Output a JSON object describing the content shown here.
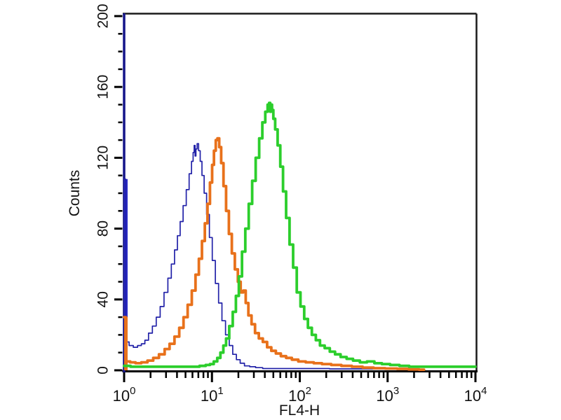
{
  "figure": {
    "background": "#ffffff",
    "plot_background": "#ffffff",
    "border_color": "#1a1a1a",
    "x_axis_color": "#000000",
    "y_axis_color": "#15158a",
    "tick_color": "#000000",
    "text_color": "#111111"
  },
  "chart_data": {
    "type": "line",
    "subtype": "flow-cytometry-overlay-histogram",
    "title": "",
    "xlabel": "FL4-H",
    "ylabel": "Counts",
    "x_scale": "log10",
    "x_range": [
      1,
      10000
    ],
    "y_range": [
      0,
      200
    ],
    "y_major_tick_step": 40,
    "y_minor_tick_step": 10,
    "y_tick_labels": [
      "0",
      "40",
      "80",
      "120",
      "160",
      "200"
    ],
    "x_tick_labels": [
      {
        "base": "10",
        "exp": "0"
      },
      {
        "base": "10",
        "exp": "1"
      },
      {
        "base": "10",
        "exp": "2"
      },
      {
        "base": "10",
        "exp": "3"
      },
      {
        "base": "10",
        "exp": "4"
      }
    ],
    "grid": false,
    "legend": "none",
    "series": [
      {
        "name": "blue",
        "color": "#2222a8",
        "stroke_width": 1.7,
        "peak_x": 6.9,
        "peak_counts": 128,
        "axis_spike": {
          "x": 1,
          "height": 108,
          "color": "#2828c4",
          "width": 5
        },
        "points": [
          [
            1,
            108
          ],
          [
            1.08,
            16
          ],
          [
            1.2,
            14
          ],
          [
            1.35,
            13
          ],
          [
            1.5,
            14
          ],
          [
            1.65,
            15
          ],
          [
            1.8,
            17
          ],
          [
            2.0,
            21
          ],
          [
            2.2,
            25
          ],
          [
            2.45,
            30
          ],
          [
            2.7,
            36
          ],
          [
            3.0,
            44
          ],
          [
            3.3,
            52
          ],
          [
            3.6,
            60
          ],
          [
            3.9,
            68
          ],
          [
            4.2,
            76
          ],
          [
            4.5,
            84
          ],
          [
            4.9,
            93
          ],
          [
            5.3,
            102
          ],
          [
            5.7,
            111
          ],
          [
            6.0,
            118
          ],
          [
            6.2,
            123
          ],
          [
            6.35,
            127
          ],
          [
            6.5,
            121
          ],
          [
            6.65,
            125
          ],
          [
            6.9,
            128
          ],
          [
            7.2,
            124
          ],
          [
            7.5,
            118
          ],
          [
            7.9,
            110
          ],
          [
            8.4,
            100
          ],
          [
            9.0,
            88
          ],
          [
            9.7,
            75
          ],
          [
            10.5,
            62
          ],
          [
            11.4,
            49
          ],
          [
            12.4,
            38
          ],
          [
            13.6,
            28
          ],
          [
            15.0,
            20
          ],
          [
            16.5,
            14
          ],
          [
            18,
            9
          ],
          [
            20,
            6
          ],
          [
            22,
            4
          ],
          [
            25,
            2.5
          ],
          [
            29,
            2
          ],
          [
            34,
            1.5
          ],
          [
            42,
            1
          ],
          [
            55,
            1
          ],
          [
            75,
            1
          ],
          [
            110,
            1
          ],
          [
            170,
            1
          ],
          [
            280,
            0.8
          ],
          [
            450,
            0.8
          ],
          [
            700,
            0.8
          ],
          [
            1100,
            0.8
          ],
          [
            1600,
            0.5
          ],
          [
            2100,
            0.3
          ]
        ]
      },
      {
        "name": "orange",
        "color": "#e8711b",
        "stroke_width": 3.8,
        "peak_x": 11.5,
        "peak_counts": 131,
        "axis_spike": {
          "x": 1,
          "height": 30,
          "color": "#e8711b",
          "width": 5
        },
        "points": [
          [
            1,
            30
          ],
          [
            1.1,
            5
          ],
          [
            1.25,
            4.5
          ],
          [
            1.45,
            4
          ],
          [
            1.7,
            4.5
          ],
          [
            2.0,
            5.5
          ],
          [
            2.3,
            7
          ],
          [
            2.7,
            9
          ],
          [
            3.1,
            12
          ],
          [
            3.5,
            15
          ],
          [
            4.0,
            19
          ],
          [
            4.5,
            24
          ],
          [
            5.0,
            30
          ],
          [
            5.6,
            37
          ],
          [
            6.2,
            45
          ],
          [
            6.8,
            54
          ],
          [
            7.4,
            63
          ],
          [
            8.0,
            73
          ],
          [
            8.6,
            83
          ],
          [
            9.2,
            94
          ],
          [
            9.8,
            106
          ],
          [
            10.3,
            116
          ],
          [
            10.8,
            124
          ],
          [
            11.3,
            130
          ],
          [
            11.8,
            131
          ],
          [
            12.4,
            126
          ],
          [
            13.1,
            117
          ],
          [
            14.0,
            104
          ],
          [
            15.0,
            90
          ],
          [
            16.2,
            77
          ],
          [
            17.5,
            66
          ],
          [
            19.0,
            57
          ],
          [
            20.5,
            50
          ],
          [
            22,
            44
          ],
          [
            23.5,
            45
          ],
          [
            25,
            38
          ],
          [
            27,
            31
          ],
          [
            29.5,
            26
          ],
          [
            32.5,
            21
          ],
          [
            36,
            18
          ],
          [
            40,
            16
          ],
          [
            45,
            13
          ],
          [
            50,
            11
          ],
          [
            57,
            9.5
          ],
          [
            65,
            8
          ],
          [
            75,
            7
          ],
          [
            88,
            6
          ],
          [
            105,
            5
          ],
          [
            130,
            4.5
          ],
          [
            160,
            4
          ],
          [
            200,
            3.5
          ],
          [
            260,
            3
          ],
          [
            340,
            2.5
          ],
          [
            450,
            2
          ],
          [
            600,
            1.5
          ],
          [
            800,
            1.2
          ],
          [
            1100,
            1
          ],
          [
            1500,
            0.8
          ],
          [
            2000,
            0.5
          ],
          [
            2600,
            0.3
          ]
        ]
      },
      {
        "name": "green",
        "color": "#2cce2c",
        "stroke_width": 3.8,
        "peak_x": 45,
        "peak_counts": 151,
        "axis_spike": null,
        "points": [
          [
            1,
            2.5
          ],
          [
            1.4,
            2
          ],
          [
            2,
            2
          ],
          [
            2.8,
            2
          ],
          [
            3.8,
            2
          ],
          [
            5,
            2
          ],
          [
            6.5,
            2
          ],
          [
            8,
            2.5
          ],
          [
            9,
            3
          ],
          [
            10,
            3.5
          ],
          [
            11,
            5
          ],
          [
            12,
            7
          ],
          [
            13,
            10
          ],
          [
            14,
            14
          ],
          [
            15,
            18
          ],
          [
            16.5,
            25
          ],
          [
            18,
            33
          ],
          [
            19.5,
            42
          ],
          [
            21,
            53
          ],
          [
            23,
            67
          ],
          [
            25,
            80
          ],
          [
            27.5,
            94
          ],
          [
            30,
            107
          ],
          [
            33,
            120
          ],
          [
            36,
            131
          ],
          [
            39,
            140
          ],
          [
            42,
            146
          ],
          [
            44,
            150
          ],
          [
            45.5,
            151
          ],
          [
            46.5,
            146
          ],
          [
            47.5,
            150
          ],
          [
            49,
            147
          ],
          [
            51,
            142
          ],
          [
            54,
            136
          ],
          [
            58,
            127
          ],
          [
            62,
            115
          ],
          [
            67,
            101
          ],
          [
            73,
            86
          ],
          [
            80,
            71
          ],
          [
            88,
            58
          ],
          [
            97,
            44
          ],
          [
            107,
            36
          ],
          [
            118,
            29
          ],
          [
            130,
            24
          ],
          [
            145,
            20
          ],
          [
            160,
            17
          ],
          [
            180,
            14
          ],
          [
            205,
            12.5
          ],
          [
            235,
            10.5
          ],
          [
            270,
            9
          ],
          [
            315,
            7.5
          ],
          [
            370,
            6.5
          ],
          [
            440,
            5.5
          ],
          [
            530,
            4.5
          ],
          [
            640,
            5
          ],
          [
            780,
            4
          ],
          [
            950,
            3.5
          ],
          [
            1200,
            3
          ],
          [
            1550,
            2.5
          ],
          [
            2000,
            2
          ],
          [
            2800,
            2
          ],
          [
            4000,
            2
          ],
          [
            5800,
            2
          ],
          [
            8000,
            2
          ],
          [
            10000,
            2
          ]
        ]
      }
    ]
  }
}
